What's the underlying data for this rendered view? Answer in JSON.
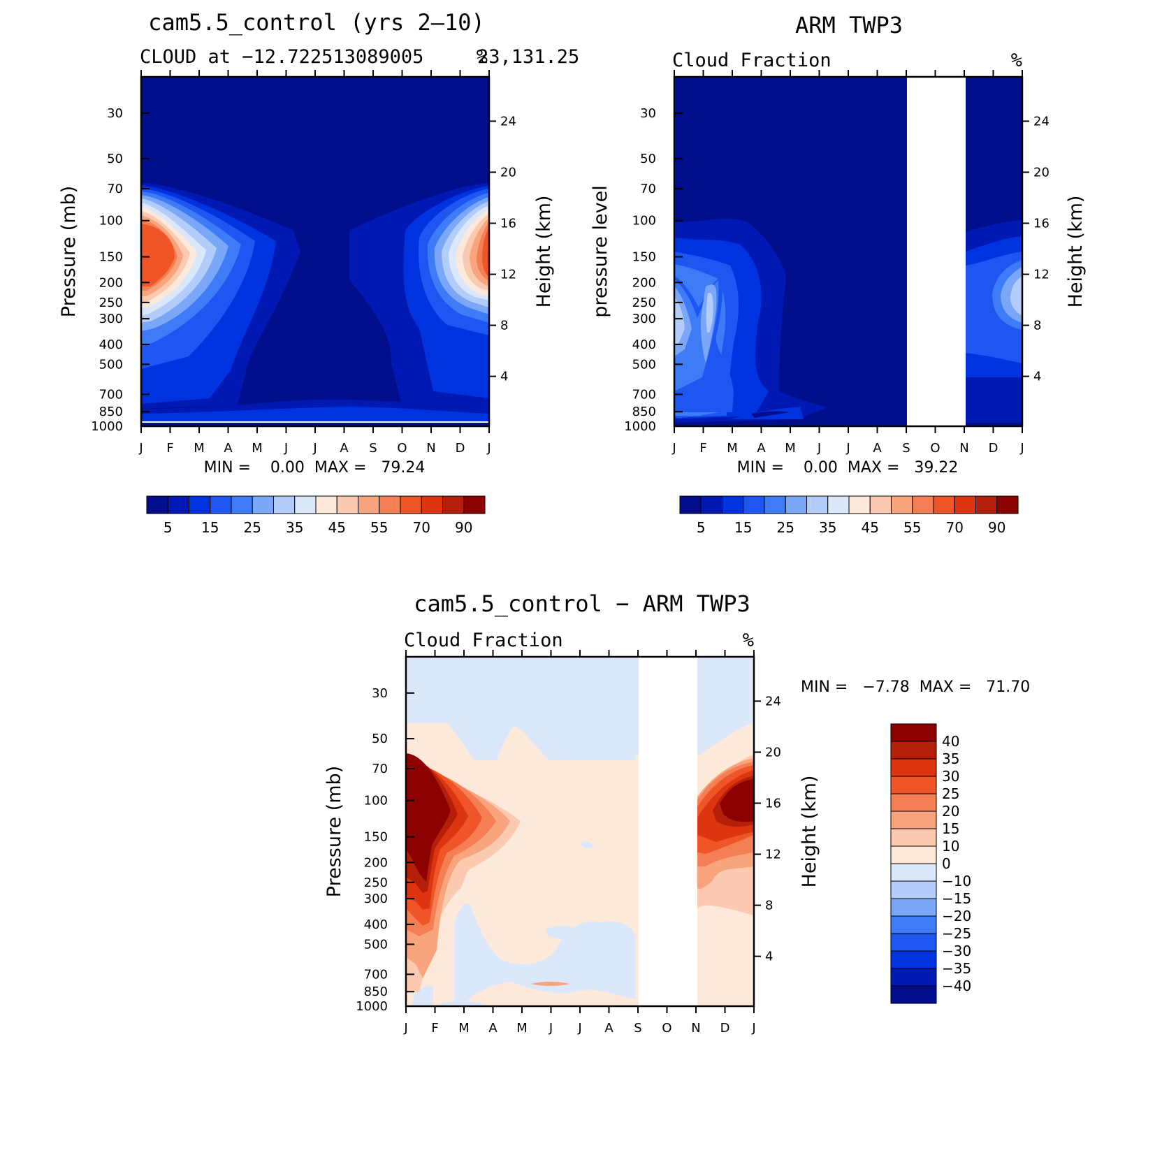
{
  "chart_data": [
    {
      "type": "heatmap",
      "id": "p1",
      "title": "cam5.5_control (yrs 2‒10)",
      "subtitle_left": "CLOUD at −12.722513089005",
      "subtitle_right": "23,131.25",
      "units": "%",
      "xlabel": "",
      "ylabel": "Pressure (mb)",
      "ylabel_right": "Height (km)",
      "x_ticks": [
        "J",
        "F",
        "M",
        "A",
        "M",
        "J",
        "J",
        "A",
        "S",
        "O",
        "N",
        "D",
        "J"
      ],
      "y_ticks": [
        30,
        50,
        70,
        100,
        150,
        200,
        250,
        300,
        400,
        500,
        700,
        850,
        1000
      ],
      "y_ticks_right": [
        24,
        20,
        16,
        12,
        8,
        4
      ],
      "ylim": [
        1000,
        20
      ],
      "min_max_text": "MIN =    0.00  MAX =   79.24",
      "colorbar_labels": [
        "5",
        "15",
        "25",
        "35",
        "45",
        "55",
        "70",
        "90"
      ],
      "contour_levels": [
        5,
        10,
        15,
        20,
        25,
        30,
        35,
        40,
        45,
        50,
        55,
        60,
        70,
        80,
        90
      ],
      "colors": [
        "#000e8c",
        "#0019b3",
        "#0033e0",
        "#1e56f2",
        "#3e7bf7",
        "#7aa7f7",
        "#b3ccf9",
        "#dbe8fc",
        "#fde9d9",
        "#fbcab0",
        "#f8a57e",
        "#f47f55",
        "#ef5527",
        "#dc3510",
        "#b31f08",
        "#8c0000"
      ],
      "missing_months": [],
      "grid": false
    },
    {
      "type": "heatmap",
      "id": "p2",
      "title": "ARM TWP3",
      "subtitle_left": "Cloud Fraction",
      "subtitle_right": "",
      "units": "%",
      "xlabel": "",
      "ylabel": "pressure level",
      "ylabel_right": "Height (km)",
      "x_ticks": [
        "J",
        "F",
        "M",
        "A",
        "M",
        "J",
        "J",
        "A",
        "S",
        "O",
        "N",
        "D",
        "J"
      ],
      "y_ticks": [
        30,
        50,
        70,
        100,
        150,
        200,
        250,
        300,
        400,
        500,
        700,
        850,
        1000
      ],
      "y_ticks_right": [
        24,
        20,
        16,
        12,
        8,
        4
      ],
      "ylim": [
        1000,
        20
      ],
      "min_max_text": "MIN =    0.00  MAX =   39.22",
      "colorbar_labels": [
        "5",
        "15",
        "25",
        "35",
        "45",
        "55",
        "70",
        "90"
      ],
      "contour_levels": [
        5,
        10,
        15,
        20,
        25,
        30,
        35,
        40,
        45,
        50,
        55,
        60,
        70,
        80,
        90
      ],
      "colors": [
        "#000e8c",
        "#0019b3",
        "#0033e0",
        "#1e56f2",
        "#3e7bf7",
        "#7aa7f7",
        "#b3ccf9",
        "#dbe8fc",
        "#fde9d9",
        "#fbcab0",
        "#f8a57e",
        "#f47f55",
        "#ef5527",
        "#dc3510",
        "#b31f08",
        "#8c0000"
      ],
      "missing_months": [
        "S",
        "O"
      ],
      "grid": false
    },
    {
      "type": "heatmap",
      "id": "p3",
      "title": "cam5.5_control − ARM TWP3",
      "subtitle_left": "Cloud Fraction",
      "subtitle_right": "",
      "units": "%",
      "xlabel": "",
      "ylabel": "Pressure (mb)",
      "ylabel_right": "Height (km)",
      "x_ticks": [
        "J",
        "F",
        "M",
        "A",
        "M",
        "J",
        "J",
        "A",
        "S",
        "O",
        "N",
        "D",
        "J"
      ],
      "y_ticks": [
        30,
        50,
        70,
        100,
        150,
        200,
        250,
        300,
        400,
        500,
        700,
        850,
        1000
      ],
      "y_ticks_right": [
        24,
        20,
        16,
        12,
        8,
        4
      ],
      "ylim": [
        1000,
        20
      ],
      "min_max_text": "MIN =   −7.78  MAX =   71.70",
      "colorbar_labels": [
        "40",
        "35",
        "30",
        "25",
        "20",
        "15",
        "10",
        "0",
        "−10",
        "−15",
        "−20",
        "−25",
        "−30",
        "−35",
        "−40"
      ],
      "contour_levels": [
        -40,
        -35,
        -30,
        -25,
        -20,
        -15,
        -10,
        0,
        10,
        15,
        20,
        25,
        30,
        35,
        40
      ],
      "colors": [
        "#8c0000",
        "#b31f08",
        "#dc3510",
        "#ef5527",
        "#f47f55",
        "#f8a57e",
        "#fbcab0",
        "#fde9d9",
        "#dbe8fc",
        "#b3ccf9",
        "#7aa7f7",
        "#3e7bf7",
        "#1e56f2",
        "#0033e0",
        "#0019b3",
        "#000e8c"
      ],
      "missing_months": [
        "S",
        "O"
      ],
      "grid": false
    }
  ]
}
